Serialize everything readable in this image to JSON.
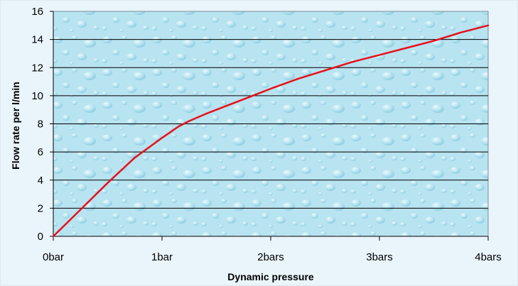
{
  "chart_data": {
    "type": "line",
    "title": "",
    "xlabel": "Dynamic pressure",
    "ylabel": "Flow rate per l/min",
    "xlim": [
      0,
      4
    ],
    "ylim": [
      0,
      16
    ],
    "x_ticks": [
      {
        "value": 0,
        "label": "0bar"
      },
      {
        "value": 1,
        "label": "1bar"
      },
      {
        "value": 2,
        "label": "2bars"
      },
      {
        "value": 3,
        "label": "3bars"
      },
      {
        "value": 4,
        "label": "4bars"
      }
    ],
    "y_ticks": [
      {
        "value": 0,
        "label": "0"
      },
      {
        "value": 2,
        "label": "2"
      },
      {
        "value": 4,
        "label": "4"
      },
      {
        "value": 6,
        "label": "6"
      },
      {
        "value": 8,
        "label": "8"
      },
      {
        "value": 10,
        "label": "10"
      },
      {
        "value": 12,
        "label": "12"
      },
      {
        "value": 14,
        "label": "14"
      },
      {
        "value": 16,
        "label": "16"
      }
    ],
    "grid": "horizontal",
    "legend": "none",
    "series": [
      {
        "color": "#e8101a",
        "x": [
          0,
          0.25,
          0.5,
          0.75,
          1.0,
          1.15,
          1.25,
          1.4,
          1.6,
          1.8,
          2.0,
          2.25,
          2.5,
          2.75,
          3.0,
          3.25,
          3.5,
          3.75,
          4.0
        ],
        "y": [
          0,
          1.9,
          3.8,
          5.6,
          7.0,
          7.8,
          8.2,
          8.7,
          9.3,
          9.9,
          10.5,
          11.2,
          11.8,
          12.4,
          12.9,
          13.4,
          13.9,
          14.5,
          15.0
        ]
      }
    ],
    "colors": {
      "plot_background": "#b8e3f0",
      "gridline": "#000000",
      "page_background": "#eaf5fb"
    }
  }
}
